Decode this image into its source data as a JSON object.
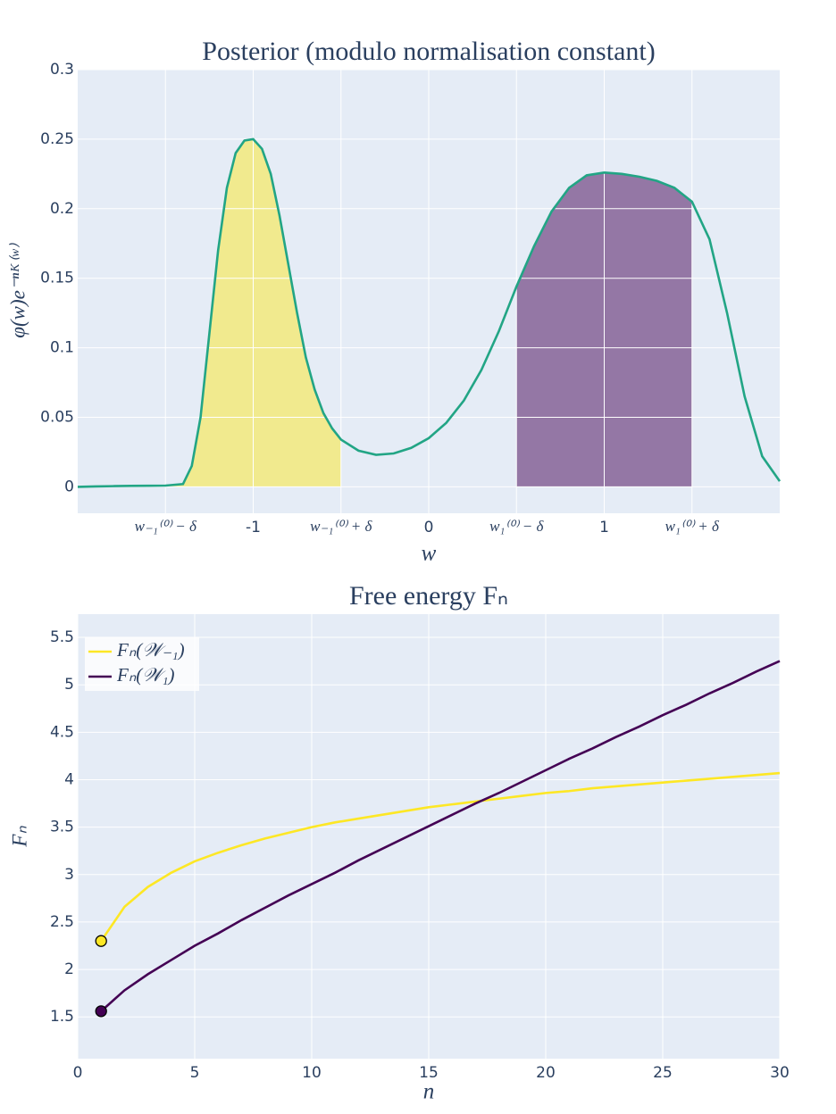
{
  "chart_data": [
    {
      "type": "line",
      "title": "Posterior (modulo normalisation constant)",
      "x_label": "w",
      "y_label": "φ(w)e⁻ⁿᴷ⁽ʷ⁾",
      "x": [
        -2,
        -1.9,
        -1.8,
        -1.7,
        -1.6,
        -1.5,
        -1.4,
        -1.35,
        -1.3,
        -1.25,
        -1.2,
        -1.15,
        -1.1,
        -1.05,
        -1,
        -0.95,
        -0.9,
        -0.85,
        -0.8,
        -0.75,
        -0.7,
        -0.65,
        -0.6,
        -0.55,
        -0.5,
        -0.4,
        -0.3,
        -0.2,
        -0.1,
        0,
        0.1,
        0.2,
        0.3,
        0.4,
        0.5,
        0.6,
        0.7,
        0.8,
        0.9,
        1,
        1.1,
        1.2,
        1.3,
        1.4,
        1.5,
        1.6,
        1.7,
        1.8,
        1.9,
        2
      ],
      "series": [
        {
          "color": "#22a585",
          "values": [
            0,
            0.0003,
            0.0005,
            0.0007,
            0.0008,
            0.0009,
            0.002,
            0.015,
            0.05,
            0.11,
            0.17,
            0.215,
            0.24,
            0.249,
            0.25,
            0.243,
            0.225,
            0.195,
            0.16,
            0.125,
            0.093,
            0.07,
            0.053,
            0.042,
            0.034,
            0.026,
            0.023,
            0.024,
            0.028,
            0.035,
            0.046,
            0.062,
            0.084,
            0.112,
            0.144,
            0.173,
            0.198,
            0.215,
            0.224,
            0.226,
            0.225,
            0.223,
            0.22,
            0.215,
            0.205,
            0.178,
            0.125,
            0.065,
            0.022,
            0.004
          ]
        }
      ],
      "fills": [
        {
          "from": -1.5,
          "to": -0.5,
          "color": "#fde725",
          "opacity": 0.5
        },
        {
          "from": 0.5,
          "to": 1.5,
          "color": "#440154",
          "opacity": 0.5
        }
      ],
      "xlim": [
        -2,
        2
      ],
      "ylim": [
        -0.019,
        0.3
      ],
      "xticks": [
        {
          "value": -1.5,
          "label": "w₋₁⁽⁰⁾ − δ"
        },
        -1,
        {
          "value": -0.5,
          "label": "w₋₁⁽⁰⁾ + δ"
        },
        0,
        {
          "value": 0.5,
          "label": "w₁⁽⁰⁾ − δ"
        },
        1,
        {
          "value": 1.5,
          "label": "w₁⁽⁰⁾ + δ"
        }
      ],
      "yticks": [
        0,
        0.05,
        0.1,
        0.15,
        0.2,
        0.25,
        0.3
      ],
      "grid": true
    },
    {
      "type": "line",
      "title": "Free energy Fₙ",
      "x_label": "n",
      "y_label": "Fₙ",
      "x": [
        1,
        2,
        3,
        4,
        5,
        6,
        7,
        8,
        9,
        10,
        11,
        12,
        13,
        14,
        15,
        16,
        17,
        18,
        19,
        20,
        21,
        22,
        23,
        24,
        25,
        26,
        27,
        28,
        29,
        30
      ],
      "series": [
        {
          "name": "Fₙ(𝒲₋₁)",
          "color": "#fde725",
          "start_marker": true,
          "values": [
            2.3,
            2.66,
            2.87,
            3.02,
            3.14,
            3.23,
            3.31,
            3.38,
            3.44,
            3.5,
            3.55,
            3.59,
            3.63,
            3.67,
            3.71,
            3.74,
            3.77,
            3.8,
            3.83,
            3.86,
            3.88,
            3.91,
            3.93,
            3.95,
            3.97,
            3.99,
            4.01,
            4.03,
            4.05,
            4.07
          ]
        },
        {
          "name": "Fₙ(𝒲₁)",
          "color": "#440154",
          "start_marker": true,
          "values": [
            1.56,
            1.78,
            1.95,
            2.1,
            2.25,
            2.38,
            2.52,
            2.65,
            2.78,
            2.9,
            3.02,
            3.15,
            3.27,
            3.39,
            3.51,
            3.63,
            3.75,
            3.86,
            3.98,
            4.1,
            4.22,
            4.33,
            4.45,
            4.56,
            4.68,
            4.79,
            4.91,
            5.02,
            5.14,
            5.25
          ]
        }
      ],
      "xlim": [
        0,
        30
      ],
      "ylim": [
        1.06,
        5.745
      ],
      "xticks": [
        0,
        5,
        10,
        15,
        20,
        25,
        30
      ],
      "yticks": [
        1.5,
        2,
        2.5,
        3,
        3.5,
        4,
        4.5,
        5,
        5.5
      ],
      "grid": true,
      "legend": "top-left"
    }
  ]
}
